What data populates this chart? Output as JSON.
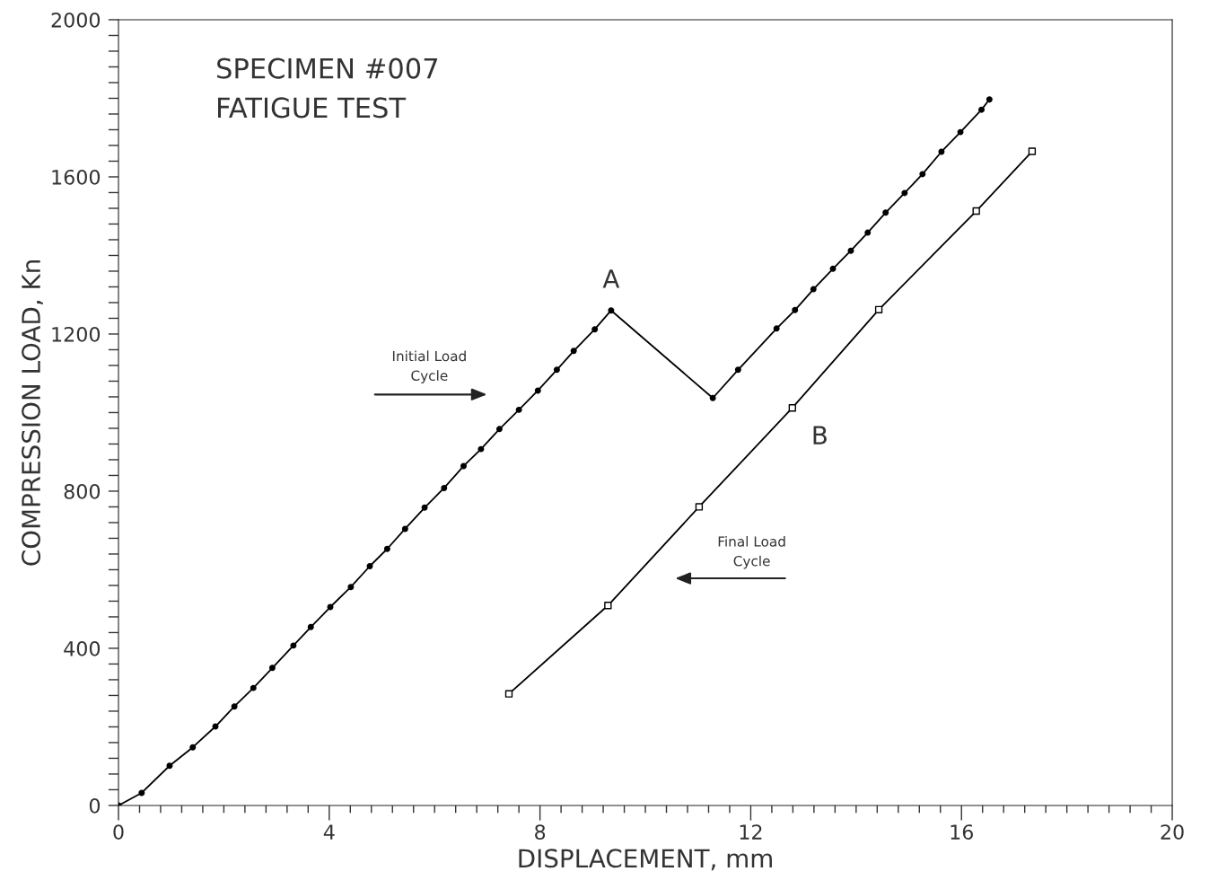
{
  "chart_data": {
    "type": "line",
    "xlabel": "DISPLACEMENT, mm",
    "ylabel": "COMPRESSION LOAD, Kn",
    "series": [
      {
        "color": "#000000",
        "marker": "circle",
        "x": [
          0,
          0.44,
          0.97,
          1.41,
          1.84,
          2.2,
          2.56,
          2.92,
          3.32,
          3.65,
          4.02,
          4.41,
          4.77,
          5.1,
          5.44,
          5.81,
          6.18,
          6.55,
          6.88,
          7.23,
          7.6,
          7.96,
          8.32,
          8.64,
          9.04,
          9.35,
          11.28,
          11.76,
          12.49,
          12.84,
          13.19,
          13.56,
          13.9,
          14.22,
          14.56,
          14.92,
          15.26,
          15.62,
          15.98,
          16.38,
          16.53
        ],
        "values": [
          0,
          32,
          101,
          148,
          201,
          252,
          299,
          350,
          407,
          454,
          505,
          556,
          609,
          653,
          704,
          758,
          808,
          864,
          907,
          958,
          1007,
          1056,
          1109,
          1157,
          1212,
          1260,
          1037,
          1109,
          1214,
          1261,
          1314,
          1366,
          1412,
          1458,
          1509,
          1559,
          1607,
          1664,
          1714,
          1771,
          1797
        ]
      },
      {
        "color": "#000000",
        "marker": "square",
        "x": [
          7.41,
          9.29,
          11.02,
          12.79,
          14.43,
          16.28,
          17.34
        ],
        "values": [
          284,
          509,
          760,
          1012,
          1262,
          1513,
          1665
        ]
      }
    ],
    "annotations": [
      "SPECIMEN #007",
      "FATIGUE TEST",
      {
        "text": "A",
        "x": 9.35,
        "y": 1260
      },
      {
        "text": "B",
        "x": 12.79,
        "y": 1012
      },
      "Initial Load\nCycle",
      "Final Load\nCycle"
    ],
    "xlim": [
      0,
      20
    ],
    "ylim": [
      0,
      2000
    ],
    "xticks": [
      0,
      {
        "value": 0.4,
        "label": null
      },
      {
        "value": 0.8,
        "label": null
      },
      {
        "value": 1.2,
        "label": null
      },
      {
        "value": 1.6,
        "label": null
      },
      {
        "value": 2,
        "label": null
      },
      {
        "value": 2.4,
        "label": null
      },
      {
        "value": 2.8,
        "label": null
      },
      {
        "value": 3.2,
        "label": null
      },
      {
        "value": 3.6,
        "label": null
      },
      4,
      {
        "value": 4.4,
        "label": null
      },
      {
        "value": 4.8,
        "label": null
      },
      {
        "value": 5.2,
        "label": null
      },
      {
        "value": 5.6,
        "label": null
      },
      {
        "value": 6,
        "label": null
      },
      {
        "value": 6.4,
        "label": null
      },
      {
        "value": 6.8,
        "label": null
      },
      {
        "value": 7.2,
        "label": null
      },
      {
        "value": 7.6,
        "label": null
      },
      8,
      {
        "value": 8.4,
        "label": null
      },
      {
        "value": 8.8,
        "label": null
      },
      {
        "value": 9.2,
        "label": null
      },
      {
        "value": 9.6,
        "label": null
      },
      {
        "value": 10,
        "label": null
      },
      {
        "value": 10.4,
        "label": null
      },
      {
        "value": 10.8,
        "label": null
      },
      {
        "value": 11.2,
        "label": null
      },
      {
        "value": 11.6,
        "label": null
      },
      12,
      {
        "value": 12.4,
        "label": null
      },
      {
        "value": 12.8,
        "label": null
      },
      {
        "value": 13.2,
        "label": null
      },
      {
        "value": 13.6,
        "label": null
      },
      {
        "value": 14,
        "label": null
      },
      {
        "value": 14.4,
        "label": null
      },
      {
        "value": 14.8,
        "label": null
      },
      {
        "value": 15.2,
        "label": null
      },
      {
        "value": 15.6,
        "label": null
      },
      16,
      {
        "value": 16.4,
        "label": null
      },
      {
        "value": 16.8,
        "label": null
      },
      {
        "value": 17.2,
        "label": null
      },
      {
        "value": 17.6,
        "label": null
      },
      {
        "value": 18,
        "label": null
      },
      {
        "value": 18.4,
        "label": null
      },
      {
        "value": 18.8,
        "label": null
      },
      {
        "value": 19.2,
        "label": null
      },
      {
        "value": 19.6,
        "label": null
      },
      20
    ],
    "yticks": [
      0,
      {
        "value": 40,
        "label": null
      },
      {
        "value": 80,
        "label": null
      },
      {
        "value": 120,
        "label": null
      },
      {
        "value": 160,
        "label": null
      },
      {
        "value": 200,
        "label": null
      },
      {
        "value": 240,
        "label": null
      },
      {
        "value": 280,
        "label": null
      },
      {
        "value": 320,
        "label": null
      },
      {
        "value": 360,
        "label": null
      },
      400,
      {
        "value": 440,
        "label": null
      },
      {
        "value": 480,
        "label": null
      },
      {
        "value": 520,
        "label": null
      },
      {
        "value": 560,
        "label": null
      },
      {
        "value": 600,
        "label": null
      },
      {
        "value": 640,
        "label": null
      },
      {
        "value": 680,
        "label": null
      },
      {
        "value": 720,
        "label": null
      },
      {
        "value": 760,
        "label": null
      },
      800,
      {
        "value": 840,
        "label": null
      },
      {
        "value": 880,
        "label": null
      },
      {
        "value": 920,
        "label": null
      },
      {
        "value": 960,
        "label": null
      },
      {
        "value": 1000,
        "label": null
      },
      {
        "value": 1040,
        "label": null
      },
      {
        "value": 1080,
        "label": null
      },
      {
        "value": 1120,
        "label": null
      },
      {
        "value": 1160,
        "label": null
      },
      1200,
      {
        "value": 1240,
        "label": null
      },
      {
        "value": 1280,
        "label": null
      },
      {
        "value": 1320,
        "label": null
      },
      {
        "value": 1360,
        "label": null
      },
      {
        "value": 1400,
        "label": null
      },
      {
        "value": 1440,
        "label": null
      },
      {
        "value": 1480,
        "label": null
      },
      {
        "value": 1520,
        "label": null
      },
      {
        "value": 1560,
        "label": null
      },
      1600,
      {
        "value": 1640,
        "label": null
      },
      {
        "value": 1680,
        "label": null
      },
      {
        "value": 1720,
        "label": null
      },
      {
        "value": 1760,
        "label": null
      },
      {
        "value": 1800,
        "label": null
      },
      {
        "value": 1840,
        "label": null
      },
      {
        "value": 1880,
        "label": null
      },
      {
        "value": 1920,
        "label": null
      },
      {
        "value": 1960,
        "label": null
      },
      2000
    ],
    "grid": false,
    "legend": false
  }
}
